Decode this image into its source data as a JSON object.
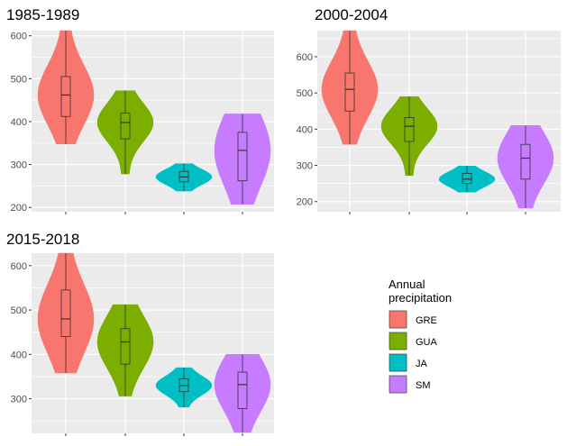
{
  "chart_data": [
    {
      "type": "violin",
      "title": "1985-1989",
      "xlabel": "",
      "ylabel": "",
      "ylim": [
        190,
        612
      ],
      "yticks": [
        200,
        300,
        400,
        500,
        600
      ],
      "categories": [
        "GRE",
        "GUA",
        "JA",
        "SM"
      ],
      "series": [
        {
          "name": "GRE",
          "min": 348,
          "q1": 412,
          "median": 462,
          "q3": 505,
          "max": 612
        },
        {
          "name": "GUA",
          "min": 278,
          "q1": 360,
          "median": 398,
          "q3": 420,
          "max": 472
        },
        {
          "name": "JA",
          "min": 238,
          "q1": 260,
          "median": 271,
          "q3": 284,
          "max": 302
        },
        {
          "name": "SM",
          "min": 207,
          "q1": 262,
          "median": 333,
          "q3": 375,
          "max": 418
        }
      ]
    },
    {
      "type": "violin",
      "title": "2000-2004",
      "xlabel": "",
      "ylabel": "",
      "ylim": [
        172,
        672
      ],
      "yticks": [
        200,
        300,
        400,
        500,
        600
      ],
      "categories": [
        "GRE",
        "GUA",
        "JA",
        "SM"
      ],
      "series": [
        {
          "name": "GRE",
          "min": 358,
          "q1": 450,
          "median": 510,
          "q3": 555,
          "max": 672
        },
        {
          "name": "GUA",
          "min": 272,
          "q1": 366,
          "median": 408,
          "q3": 432,
          "max": 490
        },
        {
          "name": "JA",
          "min": 226,
          "q1": 250,
          "median": 262,
          "q3": 278,
          "max": 298
        },
        {
          "name": "SM",
          "min": 182,
          "q1": 262,
          "median": 320,
          "q3": 358,
          "max": 410
        }
      ]
    },
    {
      "type": "violin",
      "title": "2015-2018",
      "xlabel": "",
      "ylabel": "",
      "ylim": [
        222,
        628
      ],
      "yticks": [
        300,
        400,
        500,
        600
      ],
      "categories": [
        "GRE",
        "GUA",
        "JA",
        "SM"
      ],
      "series": [
        {
          "name": "GRE",
          "min": 358,
          "q1": 440,
          "median": 480,
          "q3": 545,
          "max": 628
        },
        {
          "name": "GUA",
          "min": 306,
          "q1": 378,
          "median": 428,
          "q3": 458,
          "max": 512
        },
        {
          "name": "JA",
          "min": 281,
          "q1": 316,
          "median": 330,
          "q3": 345,
          "max": 370
        },
        {
          "name": "SM",
          "min": 224,
          "q1": 278,
          "median": 332,
          "q3": 360,
          "max": 400
        }
      ]
    }
  ],
  "legend": {
    "title_line1": "Annual",
    "title_line2": "precipitation",
    "placement": "bottom-right",
    "items": [
      {
        "label": "GRE",
        "color": "#F8766D"
      },
      {
        "label": "GUA",
        "color": "#7CAE00"
      },
      {
        "label": "JA",
        "color": "#00BFC4"
      },
      {
        "label": "SM",
        "color": "#C77CFF"
      }
    ]
  },
  "colors": {
    "panel_background": "#EBEBEB",
    "grid": "#FFFFFF",
    "tick_text": "#4D4D4D",
    "box_stroke": "#333333"
  }
}
